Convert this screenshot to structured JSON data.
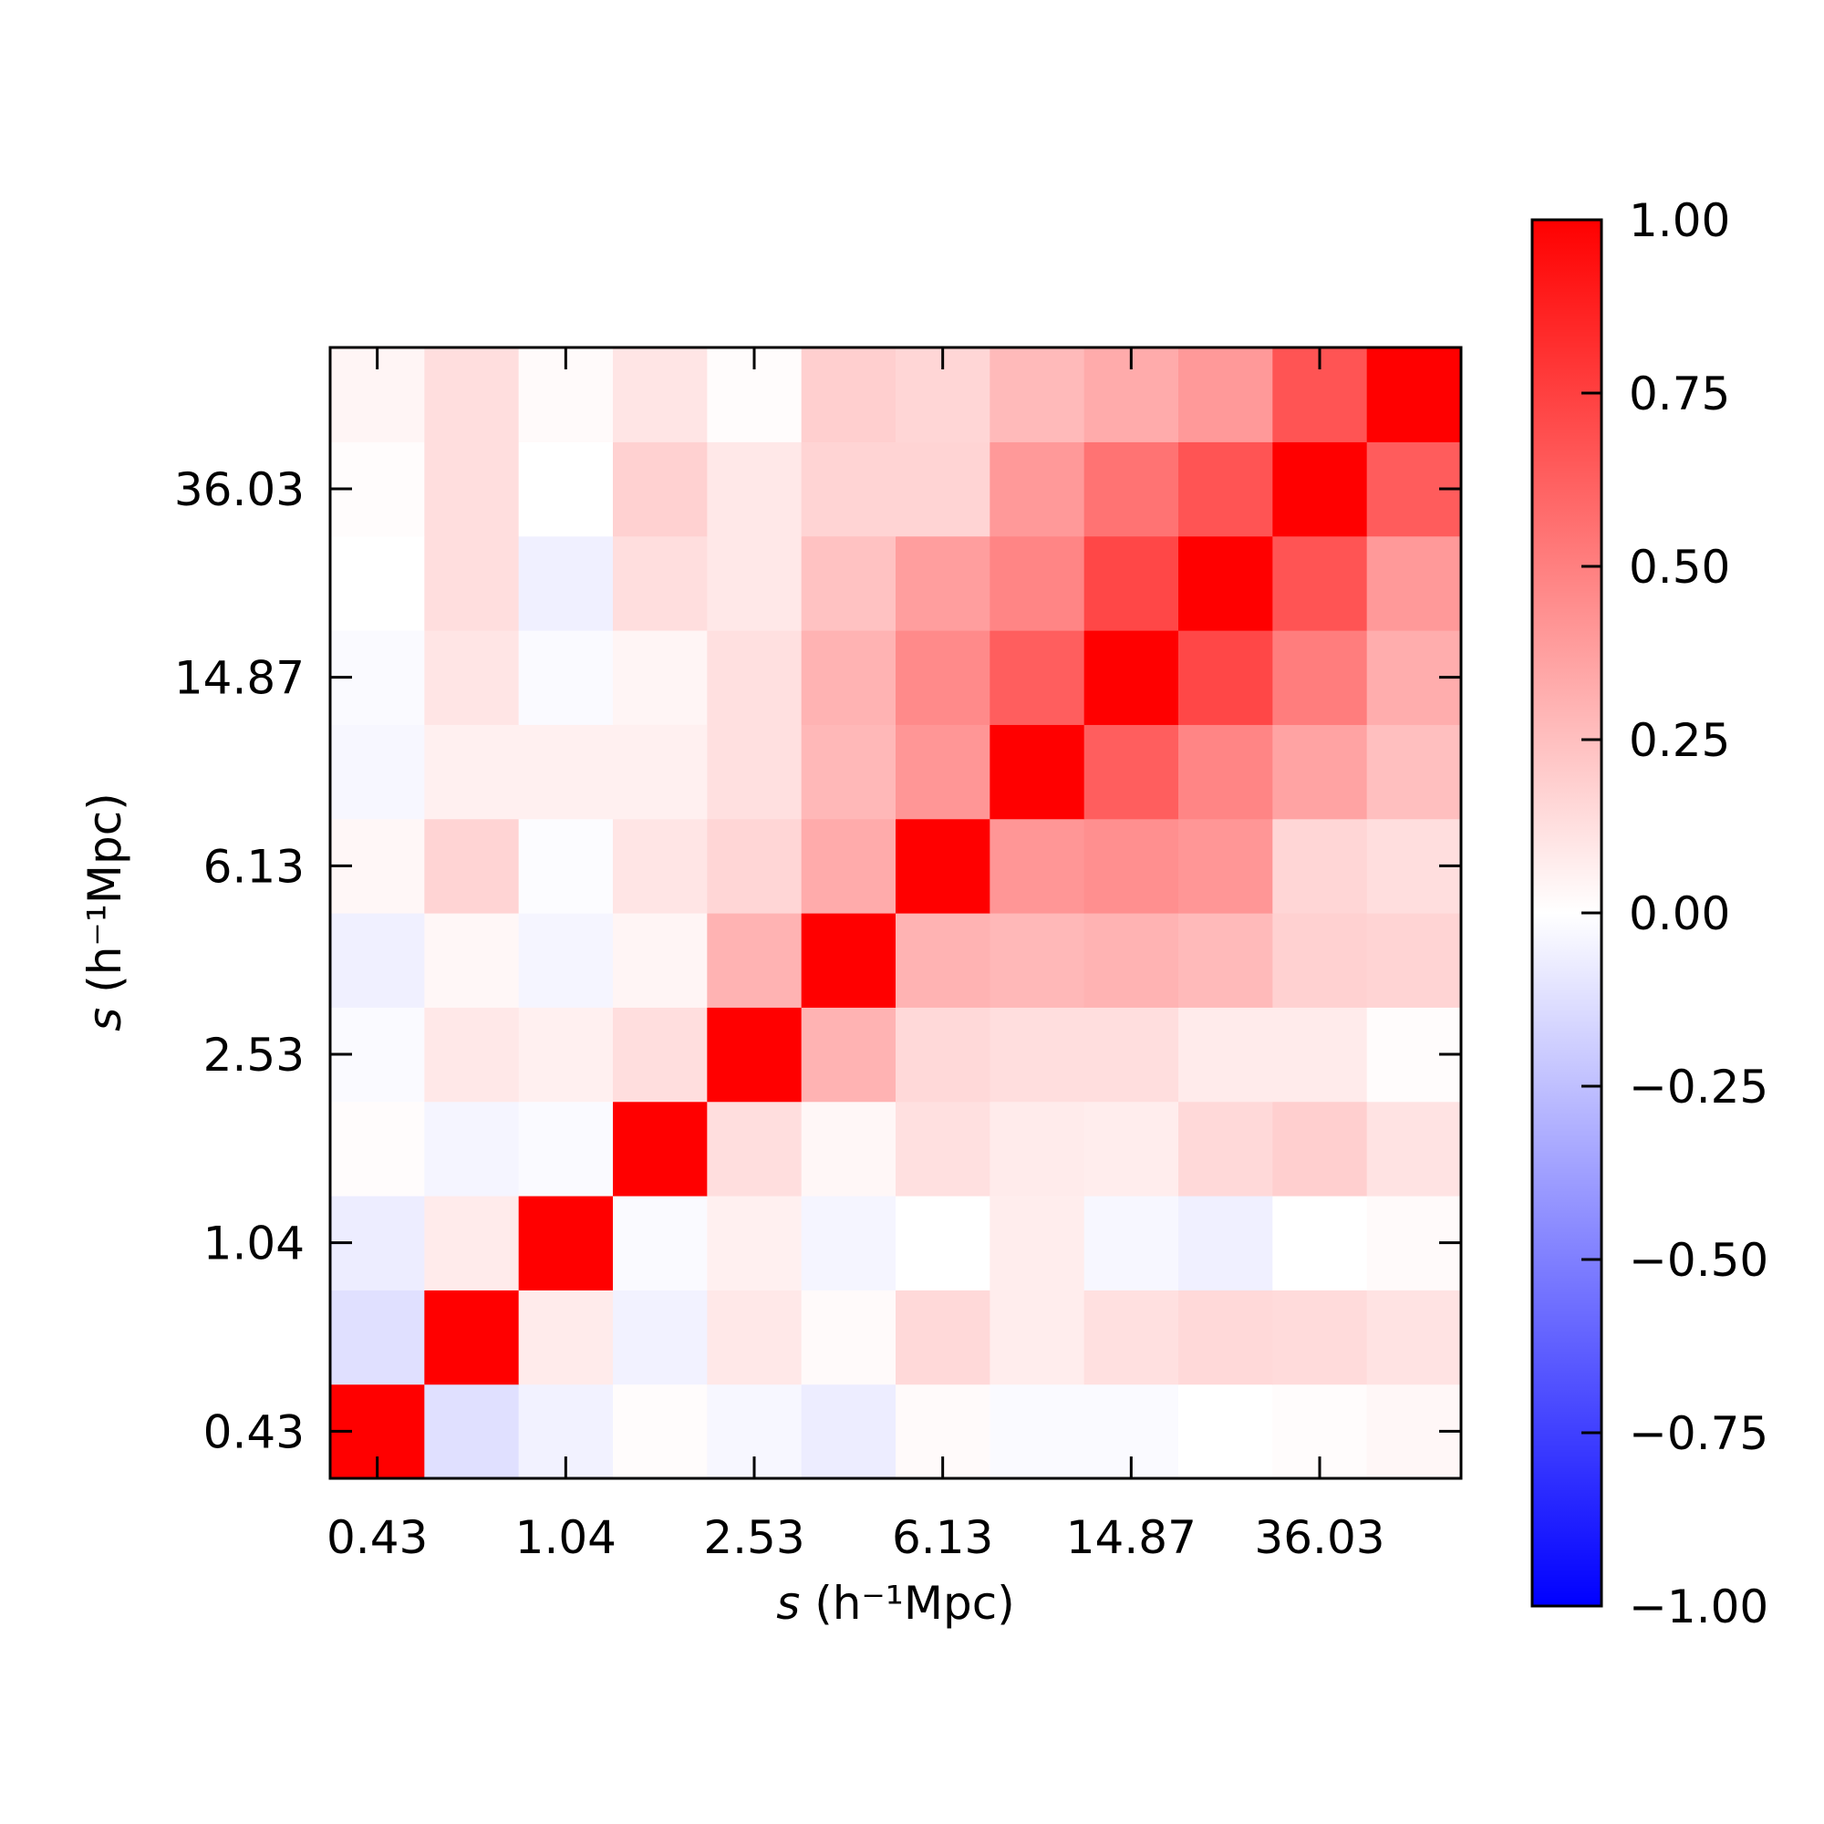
{
  "chart_data": {
    "type": "heatmap",
    "title": "",
    "xlabel": {
      "var": "s",
      "unit": "(h⁻¹Mpc)"
    },
    "ylabel": {
      "var": "s",
      "unit": "(h⁻¹Mpc)"
    },
    "x_ticks": [
      "0.43",
      "1.04",
      "2.53",
      "6.13",
      "14.87",
      "36.03"
    ],
    "y_ticks": [
      "0.43",
      "1.04",
      "2.53",
      "6.13",
      "14.87",
      "36.03"
    ],
    "colormap": "bwr",
    "vmin": -1.0,
    "vmax": 1.0,
    "colorbar_ticks": [
      "1.00",
      "0.75",
      "0.50",
      "0.25",
      "0.00",
      "−0.25",
      "−0.50",
      "−0.75",
      "−1.00"
    ],
    "colors": {
      "low": "#0000ff",
      "mid": "#ffffff",
      "high": "#ff0000"
    },
    "matrix_rows_bottom_to_top": [
      [
        1.0,
        -0.12,
        -0.05,
        0.01,
        -0.03,
        -0.07,
        0.02,
        -0.02,
        -0.02,
        0.0,
        0.01,
        0.03
      ],
      [
        -0.12,
        1.0,
        0.08,
        -0.05,
        0.09,
        0.02,
        0.15,
        0.07,
        0.12,
        0.15,
        0.14,
        0.11
      ],
      [
        -0.07,
        0.08,
        1.0,
        -0.02,
        0.06,
        -0.04,
        0.0,
        0.07,
        -0.03,
        -0.06,
        0.0,
        0.02
      ],
      [
        0.01,
        -0.04,
        -0.02,
        1.0,
        0.13,
        0.03,
        0.12,
        0.08,
        0.07,
        0.15,
        0.19,
        0.11
      ],
      [
        -0.02,
        0.09,
        0.06,
        0.13,
        1.0,
        0.3,
        0.15,
        0.13,
        0.13,
        0.08,
        0.08,
        0.01
      ],
      [
        -0.06,
        0.03,
        -0.04,
        0.04,
        0.3,
        1.0,
        0.3,
        0.28,
        0.3,
        0.27,
        0.18,
        0.17
      ],
      [
        0.03,
        0.17,
        -0.01,
        0.1,
        0.16,
        0.33,
        1.0,
        0.41,
        0.44,
        0.41,
        0.16,
        0.13
      ],
      [
        -0.03,
        0.06,
        0.06,
        0.06,
        0.12,
        0.28,
        0.41,
        1.0,
        0.63,
        0.48,
        0.36,
        0.25
      ],
      [
        -0.02,
        0.1,
        -0.02,
        0.04,
        0.12,
        0.3,
        0.46,
        0.63,
        1.0,
        0.72,
        0.51,
        0.32
      ],
      [
        0.0,
        0.13,
        -0.06,
        0.13,
        0.09,
        0.24,
        0.38,
        0.48,
        0.72,
        1.0,
        0.67,
        0.4
      ],
      [
        0.01,
        0.13,
        0.0,
        0.18,
        0.09,
        0.17,
        0.17,
        0.4,
        0.55,
        0.67,
        1.0,
        0.64
      ],
      [
        0.04,
        0.13,
        0.02,
        0.1,
        0.01,
        0.19,
        0.16,
        0.27,
        0.33,
        0.4,
        0.67,
        1.0
      ]
    ]
  }
}
